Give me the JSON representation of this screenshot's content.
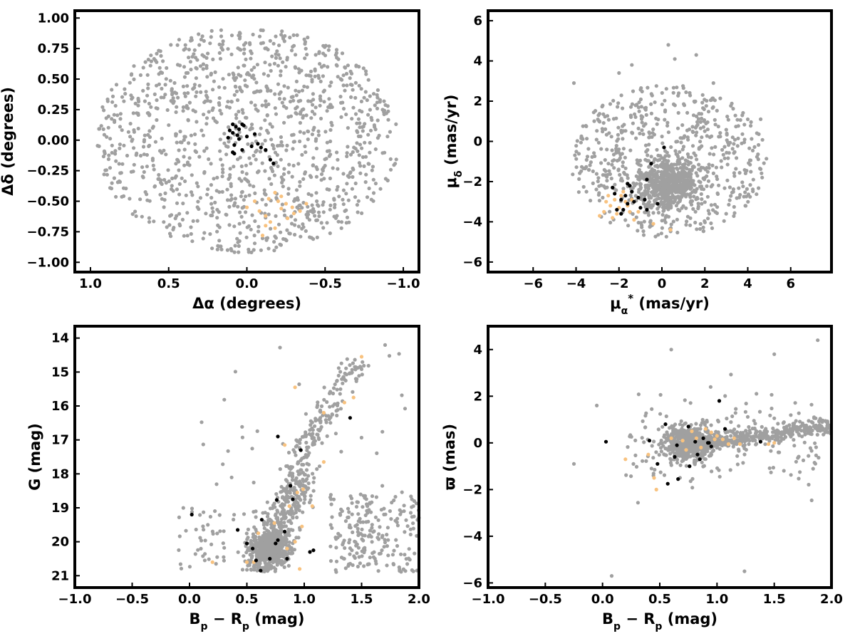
{
  "colors": {
    "field": "#a0a0a0",
    "members": "#000000",
    "highlight": "#f8c27f",
    "frame": "#000000"
  },
  "chart_data": [
    {
      "id": "sky",
      "type": "scatter",
      "xlabel": "Δα (degrees)",
      "ylabel": "Δδ (degrees)",
      "xlim": [
        1.1,
        -1.1
      ],
      "ylim": [
        -1.08,
        1.06
      ],
      "xticks": [
        1.0,
        0.5,
        0.0,
        -0.5,
        -1.0
      ],
      "xtick_labels": [
        "1.0",
        "0.5",
        "0.0",
        "−0.5",
        "−1.0"
      ],
      "yticks": [
        1.0,
        0.75,
        0.5,
        0.25,
        0.0,
        -0.25,
        -0.5,
        -0.75,
        -1.0
      ],
      "ytick_labels": [
        "1.00",
        "0.75",
        "0.50",
        "0.25",
        "0.00",
        "−0.25",
        "−0.50",
        "−0.75",
        "−1.00"
      ],
      "background_distribution": {
        "shape": "disk",
        "center": [
          0,
          0
        ],
        "radius": 1.0,
        "count": 1200
      },
      "members": [
        [
          0.09,
          0.13
        ],
        [
          0.07,
          0.11
        ],
        [
          0.05,
          0.09
        ],
        [
          0.09,
          0.06
        ],
        [
          0.06,
          0.04
        ],
        [
          0.11,
          0.08
        ],
        [
          0.03,
          0.13
        ],
        [
          0.02,
          0.12
        ],
        [
          0.0,
          0.03
        ],
        [
          -0.05,
          0.05
        ],
        [
          -0.03,
          -0.05
        ],
        [
          0.08,
          -0.04
        ],
        [
          0.12,
          0.02
        ],
        [
          0.03,
          -0.08
        ],
        [
          0.09,
          -0.1
        ],
        [
          -0.09,
          -0.06
        ],
        [
          -0.12,
          -0.08
        ],
        [
          -0.15,
          -0.16
        ],
        [
          -0.17,
          -0.19
        ],
        [
          -0.07,
          -0.03
        ],
        [
          0.05,
          0.01
        ],
        [
          0.08,
          -0.11
        ]
      ],
      "highlight": [
        [
          -0.18,
          -0.43
        ],
        [
          -0.2,
          -0.5
        ],
        [
          -0.25,
          -0.52
        ],
        [
          -0.29,
          -0.55
        ],
        [
          -0.08,
          -0.58
        ],
        [
          -0.12,
          -0.62
        ],
        [
          -0.15,
          -0.67
        ],
        [
          -0.18,
          -0.72
        ],
        [
          -0.1,
          -0.78
        ],
        [
          -0.22,
          -0.46
        ],
        [
          -0.3,
          -0.6
        ],
        [
          -0.34,
          -0.58
        ],
        [
          0.0,
          -0.55
        ],
        [
          -0.05,
          -0.5
        ],
        [
          -0.14,
          -0.48
        ],
        [
          -0.26,
          -0.64
        ],
        [
          -0.38,
          -0.52
        ],
        [
          -0.12,
          -0.7
        ],
        [
          -0.22,
          -0.56
        ]
      ]
    },
    {
      "id": "proper-motion",
      "type": "scatter",
      "xlabel": "μα* (mas/yr)",
      "ylabel": "μδ (mas/yr)",
      "xlim": [
        -8.1,
        7.9
      ],
      "ylim": [
        -6.5,
        6.5
      ],
      "xticks": [
        -6,
        -4,
        -2,
        0,
        2,
        4,
        6
      ],
      "xtick_labels": [
        "−6",
        "−4",
        "−2",
        "0",
        "2",
        "4",
        "6"
      ],
      "yticks": [
        6,
        4,
        2,
        0,
        -2,
        -4,
        -6
      ],
      "ytick_labels": [
        "6",
        "4",
        "2",
        "0",
        "−2",
        "−4",
        "−6"
      ],
      "background_distribution": {
        "shape": "ellipse",
        "center": [
          0.3,
          -1.0
        ],
        "radii": [
          4.6,
          3.8
        ],
        "clip_y_min": -4.9,
        "count": 1200
      },
      "members": [
        [
          -2.3,
          -2.3
        ],
        [
          -2.2,
          -2.6
        ],
        [
          -1.9,
          -2.9
        ],
        [
          -1.7,
          -2.7
        ],
        [
          -1.6,
          -3.1
        ],
        [
          -1.5,
          -2.2
        ],
        [
          -1.4,
          -2.5
        ],
        [
          -1.8,
          -3.4
        ],
        [
          -2.1,
          -3.4
        ],
        [
          -1.9,
          -3.6
        ],
        [
          -1.1,
          -2.8
        ],
        [
          -0.8,
          -2.9
        ],
        [
          -0.7,
          -3.4
        ],
        [
          -1.0,
          -3.3
        ],
        [
          -0.7,
          -1.9
        ],
        [
          -0.5,
          -1.1
        ],
        [
          0.1,
          -0.3
        ],
        [
          -0.2,
          -3.1
        ],
        [
          -1.6,
          -2.1
        ],
        [
          -1.3,
          -3.0
        ]
      ],
      "highlight": [
        [
          -2.6,
          -3.0
        ],
        [
          -2.4,
          -3.2
        ],
        [
          -2.2,
          -2.9
        ],
        [
          -2.0,
          -3.3
        ],
        [
          -2.7,
          -3.5
        ],
        [
          -1.9,
          -2.7
        ],
        [
          -1.7,
          -3.0
        ],
        [
          -1.5,
          -3.5
        ],
        [
          -2.3,
          -3.8
        ],
        [
          -1.3,
          -3.9
        ],
        [
          -0.4,
          -4.1
        ],
        [
          0.4,
          -4.4
        ],
        [
          -1.8,
          -2.5
        ],
        [
          -2.1,
          -3.6
        ],
        [
          -1.6,
          -3.2
        ],
        [
          -2.9,
          -3.7
        ],
        [
          -1.1,
          -3.5
        ],
        [
          -2.5,
          -2.7
        ],
        [
          -1.4,
          -2.9
        ]
      ]
    },
    {
      "id": "cmd-g",
      "type": "scatter",
      "xlabel": "Bₚ − Rₚ (mag)",
      "ylabel": "G (mag)",
      "xlim": [
        -1.0,
        2.0
      ],
      "ylim": [
        21.35,
        13.65
      ],
      "xticks": [
        -1.0,
        -0.5,
        0.0,
        0.5,
        1.0,
        1.5,
        2.0
      ],
      "xtick_labels": [
        "−1.0",
        "−0.5",
        "0.0",
        "0.5",
        "1.0",
        "1.5",
        "2.0"
      ],
      "yticks": [
        21,
        20,
        19,
        18,
        17,
        16,
        15,
        14
      ],
      "ytick_labels": [
        "21",
        "20",
        "19",
        "18",
        "17",
        "16",
        "15",
        "14"
      ],
      "members": [
        [
          0.62,
          20.85
        ],
        [
          0.7,
          20.5
        ],
        [
          0.58,
          20.55
        ],
        [
          0.85,
          20.5
        ],
        [
          1.05,
          20.3
        ],
        [
          1.08,
          20.25
        ],
        [
          0.55,
          20.2
        ],
        [
          0.5,
          20.05
        ],
        [
          0.75,
          20.05
        ],
        [
          0.77,
          19.95
        ],
        [
          0.42,
          19.65
        ],
        [
          0.63,
          19.35
        ],
        [
          0.83,
          19.7
        ],
        [
          0.02,
          19.2
        ],
        [
          0.9,
          18.75
        ],
        [
          0.76,
          18.77
        ],
        [
          0.88,
          18.35
        ],
        [
          0.97,
          17.3
        ],
        [
          0.77,
          16.9
        ],
        [
          1.4,
          16.35
        ]
      ],
      "highlight": [
        [
          0.2,
          20.6
        ],
        [
          0.5,
          20.6
        ],
        [
          0.56,
          20.6
        ],
        [
          0.96,
          20.8
        ],
        [
          0.85,
          20.2
        ],
        [
          0.92,
          20.0
        ],
        [
          0.6,
          19.75
        ],
        [
          0.74,
          19.45
        ],
        [
          0.98,
          19.55
        ],
        [
          0.87,
          18.95
        ],
        [
          1.07,
          18.95
        ],
        [
          0.94,
          18.55
        ],
        [
          0.99,
          18.45
        ],
        [
          1.17,
          17.65
        ],
        [
          0.83,
          17.15
        ],
        [
          1.17,
          16.2
        ],
        [
          1.35,
          15.9
        ],
        [
          1.43,
          15.75
        ],
        [
          0.92,
          15.45
        ],
        [
          1.5,
          14.55
        ]
      ]
    },
    {
      "id": "cmd-parallax",
      "type": "scatter",
      "xlabel": "Bₚ − Rₚ (mag)",
      "ylabel": "ϖ (mas)",
      "xlim": [
        -1.0,
        2.0
      ],
      "ylim": [
        -6.2,
        5.0
      ],
      "xticks": [
        -1.0,
        -0.5,
        0.0,
        0.5,
        1.0,
        1.5,
        2.0
      ],
      "xtick_labels": [
        "−1.0",
        "−0.5",
        "0.0",
        "0.5",
        "1.0",
        "1.5",
        "2.0"
      ],
      "yticks": [
        4,
        2,
        0,
        -2,
        -4,
        -6
      ],
      "ytick_labels": [
        "4",
        "2",
        "0",
        "−2",
        "−4",
        "−6"
      ],
      "members": [
        [
          0.03,
          0.05
        ],
        [
          0.41,
          0.1
        ],
        [
          0.55,
          0.8
        ],
        [
          0.48,
          -0.9
        ],
        [
          0.57,
          -1.75
        ],
        [
          0.66,
          -1.55
        ],
        [
          0.65,
          -0.1
        ],
        [
          0.63,
          -0.6
        ],
        [
          0.75,
          0.7
        ],
        [
          0.76,
          -1.0
        ],
        [
          0.83,
          -0.5
        ],
        [
          0.85,
          -0.7
        ],
        [
          0.88,
          0.2
        ],
        [
          0.92,
          0.0
        ],
        [
          0.95,
          -0.15
        ],
        [
          1.02,
          1.8
        ],
        [
          1.07,
          0.6
        ],
        [
          1.38,
          0.05
        ],
        [
          0.93,
          0.0
        ],
        [
          0.81,
          0.05
        ]
      ],
      "highlight": [
        [
          0.2,
          -0.7
        ],
        [
          0.4,
          -0.5
        ],
        [
          0.45,
          -1.5
        ],
        [
          0.47,
          -2.0
        ],
        [
          0.6,
          0.2
        ],
        [
          0.7,
          0.1
        ],
        [
          0.78,
          0.5
        ],
        [
          0.82,
          0.2
        ],
        [
          0.86,
          -0.2
        ],
        [
          0.9,
          0.6
        ],
        [
          0.95,
          0.45
        ],
        [
          1.0,
          0.3
        ],
        [
          1.05,
          0.15
        ],
        [
          1.1,
          -0.05
        ],
        [
          1.15,
          0.2
        ],
        [
          1.2,
          -0.05
        ],
        [
          1.45,
          -0.05
        ],
        [
          1.5,
          0.0
        ],
        [
          0.98,
          0.15
        ],
        [
          0.73,
          -0.3
        ]
      ]
    }
  ]
}
